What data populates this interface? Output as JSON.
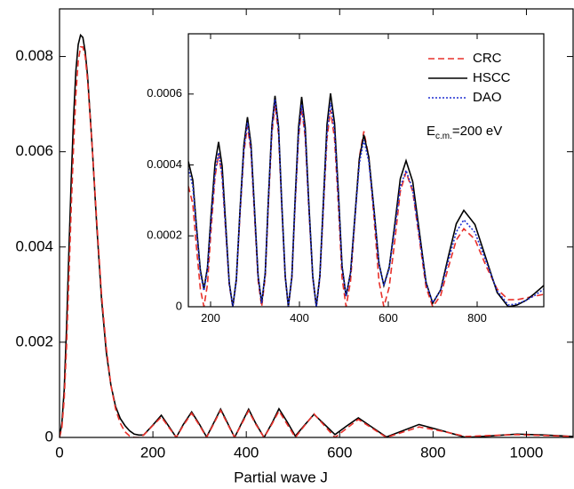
{
  "chart_data": [
    {
      "type": "line",
      "x_label": "Partial wave J",
      "xlim": [
        0,
        1100
      ],
      "ylim": [
        0,
        0.009
      ],
      "xticks": [
        0,
        200,
        400,
        600,
        800,
        1000
      ],
      "yticks": [
        0,
        0.002,
        0.004,
        0.006,
        0.008
      ],
      "x": [
        0,
        5,
        10,
        15,
        20,
        25,
        30,
        35,
        40,
        45,
        50,
        55,
        60,
        70,
        80,
        90,
        100,
        110,
        120,
        130,
        140,
        150,
        160,
        170,
        180,
        200,
        218,
        235,
        250,
        265,
        283,
        300,
        315,
        330,
        345,
        360,
        375,
        390,
        405,
        420,
        438,
        455,
        470,
        488,
        505,
        525,
        545,
        568,
        590,
        615,
        640,
        670,
        700,
        735,
        770,
        820,
        870,
        920,
        980,
        1040,
        1100
      ],
      "series": [
        {
          "name": "HSCC",
          "color": "#000000",
          "dash": "solid",
          "values": [
            0,
            0.0003,
            0.001,
            0.0023,
            0.0039,
            0.0054,
            0.0067,
            0.0077,
            0.00825,
            0.00845,
            0.0084,
            0.0081,
            0.0076,
            0.0061,
            0.0044,
            0.0029,
            0.0018,
            0.0011,
            0.00065,
            0.0004,
            0.00025,
            0.00014,
            7e-05,
            5e-05,
            5e-05,
            0.00026,
            0.000465,
            0.00022,
            0,
            0.00027,
            0.000535,
            0.00027,
            1e-05,
            0.0003,
            0.000595,
            0.0003,
            0,
            0.0003,
            0.000592,
            0.0003,
            0,
            0.0003,
            0.000602,
            0.00032,
            3e-05,
            0.00026,
            0.000485,
            0.00027,
            6e-05,
            0.00024,
            0.000412,
            0.00021,
            1e-05,
            0.00014,
            0.000272,
            0.00014,
            0,
            3e-05,
            7e-05,
            5e-05,
            2e-05
          ]
        },
        {
          "name": "CRC",
          "color": "#e8302a",
          "dash": "dashed",
          "values": [
            0,
            0.0002,
            0.0008,
            0.0019,
            0.0033,
            0.0048,
            0.0061,
            0.0072,
            0.0079,
            0.0082,
            0.0082,
            0.008,
            0.0075,
            0.0061,
            0.0045,
            0.003,
            0.0019,
            0.0011,
            0.0006,
            0.0003,
            0.00012,
            3e-05,
            0,
            0,
            5e-05,
            0.00025,
            0.00043,
            0.0002,
            0,
            0.00025,
            0.00051,
            0.00025,
            0,
            0.00028,
            0.00057,
            0.00028,
            0,
            0.00028,
            0.00056,
            0.00028,
            0,
            0.00028,
            0.000555,
            0.00027,
            0,
            0.00025,
            0.000495,
            0.00024,
            0,
            0.00019,
            0.00038,
            0.00019,
            0,
            0.00011,
            0.00022,
            0.00013,
            2e-05,
            4e-05,
            6e-05,
            4e-05,
            2e-05
          ]
        }
      ]
    },
    {
      "type": "line",
      "xlim": [
        150,
        950
      ],
      "ylim": [
        0,
        0.00077
      ],
      "xticks": [
        200,
        400,
        600,
        800
      ],
      "yticks": [
        0,
        0.0002,
        0.0004,
        0.0006
      ],
      "legend": "upper right",
      "annotation": {
        "text": "E",
        "sub": "c.m.",
        "tail": "=200 eV"
      },
      "x": [
        150,
        160,
        168,
        177,
        185,
        193,
        201,
        210,
        218,
        226,
        234,
        242,
        250,
        258,
        266,
        275,
        283,
        291,
        299,
        307,
        315,
        323,
        330,
        338,
        345,
        353,
        360,
        368,
        375,
        383,
        390,
        398,
        405,
        413,
        421,
        430,
        438,
        446,
        454,
        462,
        470,
        479,
        488,
        496,
        505,
        515,
        525,
        535,
        545,
        556,
        568,
        579,
        590,
        602,
        615,
        627,
        640,
        655,
        670,
        685,
        700,
        718,
        735,
        753,
        770,
        795,
        820,
        845,
        870,
        890,
        910,
        930,
        950
      ],
      "series": [
        {
          "name": "CRC",
          "color": "#e8302a",
          "dash": "dashed",
          "values": [
            0.00034,
            0.00029,
            0.00017,
            5e-05,
            0,
            6.3e-05,
            0.000215,
            0.000367,
            0.00043,
            0.000367,
            0.000215,
            6.3e-05,
            0,
            7.4e-05,
            0.000255,
            0.000436,
            0.00051,
            0.000436,
            0.000255,
            7.4e-05,
            0,
            8.3e-05,
            0.000285,
            0.000487,
            0.00057,
            0.000487,
            0.000285,
            8.3e-05,
            0,
            8.2e-05,
            0.00028,
            0.000478,
            0.00056,
            0.000478,
            0.00028,
            8.2e-05,
            0,
            8.1e-05,
            0.000278,
            0.000474,
            0.000555,
            0.000474,
            0.000278,
            8.1e-05,
            0,
            7.2e-05,
            0.000248,
            0.000423,
            0.000495,
            0.000423,
            0.000248,
            7.2e-05,
            0,
            5.5e-05,
            0.00019,
            0.000325,
            0.00038,
            0.000325,
            0.00019,
            5.5e-05,
            0,
            3.2e-05,
            0.00011,
            0.000188,
            0.00022,
            0.00019,
            0.000115,
            5e-05,
            2e-05,
            2e-05,
            2.5e-05,
            3e-05,
            3.5e-05
          ]
        },
        {
          "name": "HSCC",
          "color": "#000000",
          "dash": "solid",
          "values": [
            0.00041,
            0.000357,
            0.00023,
            0.000103,
            5e-05,
            0.000111,
            0.000258,
            0.000404,
            0.000465,
            0.000397,
            0.000233,
            6.8e-05,
            0,
            7.8e-05,
            0.000268,
            0.000457,
            0.000535,
            0.000458,
            0.000273,
            8.7e-05,
            1e-05,
            9.5e-05,
            0.000303,
            0.00051,
            0.000595,
            0.000508,
            0.000298,
            8.7e-05,
            0,
            8.6e-05,
            0.000296,
            0.000506,
            0.000592,
            0.000506,
            0.000296,
            8.6e-05,
            0,
            8.8e-05,
            0.000301,
            0.000514,
            0.000602,
            0.000518,
            0.000316,
            0.000114,
            3e-05,
            9.6e-05,
            0.000258,
            0.000419,
            0.000485,
            0.000423,
            0.000273,
            0.000122,
            6e-05,
            0.000111,
            0.000236,
            0.000361,
            0.000412,
            0.000353,
            0.000211,
            6.9e-05,
            1e-05,
            4.8e-05,
            0.000141,
            0.000234,
            0.000272,
            0.000232,
            0.000136,
            4e-05,
            0,
            5e-06,
            1.8e-05,
            3.8e-05,
            6e-05
          ]
        },
        {
          "name": "DAO",
          "color": "#1f2fd0",
          "dash": "dotted",
          "values": [
            0.00039,
            0.00034,
            0.00022,
            9.5e-05,
            4.5e-05,
            0.000104,
            0.00024,
            0.000377,
            0.000435,
            0.000372,
            0.000218,
            6.4e-05,
            0,
            7.6e-05,
            0.00026,
            0.000444,
            0.00052,
            0.000446,
            0.000265,
            8.4e-05,
            1e-05,
            9.4e-05,
            0.000298,
            0.000501,
            0.000585,
            0.0005,
            0.000293,
            8.6e-05,
            2e-06,
            8.5e-05,
            0.000286,
            0.000487,
            0.00057,
            0.000487,
            0.000285,
            8.3e-05,
            0,
            8.4e-05,
            0.000288,
            0.000491,
            0.000575,
            0.000495,
            0.000302,
            0.00011,
            3e-05,
            9.4e-05,
            0.00025,
            0.000406,
            0.00047,
            0.00041,
            0.000265,
            0.00012,
            6e-05,
            0.000107,
            0.000223,
            0.000338,
            0.000385,
            0.00033,
            0.000198,
            6.6e-05,
            1.2e-05,
            4.6e-05,
            0.000129,
            0.000211,
            0.000245,
            0.00021,
            0.000128,
            4.5e-05,
            5e-06,
            8e-06,
            1.8e-05,
            3.2e-05,
            5e-05
          ]
        }
      ]
    }
  ]
}
